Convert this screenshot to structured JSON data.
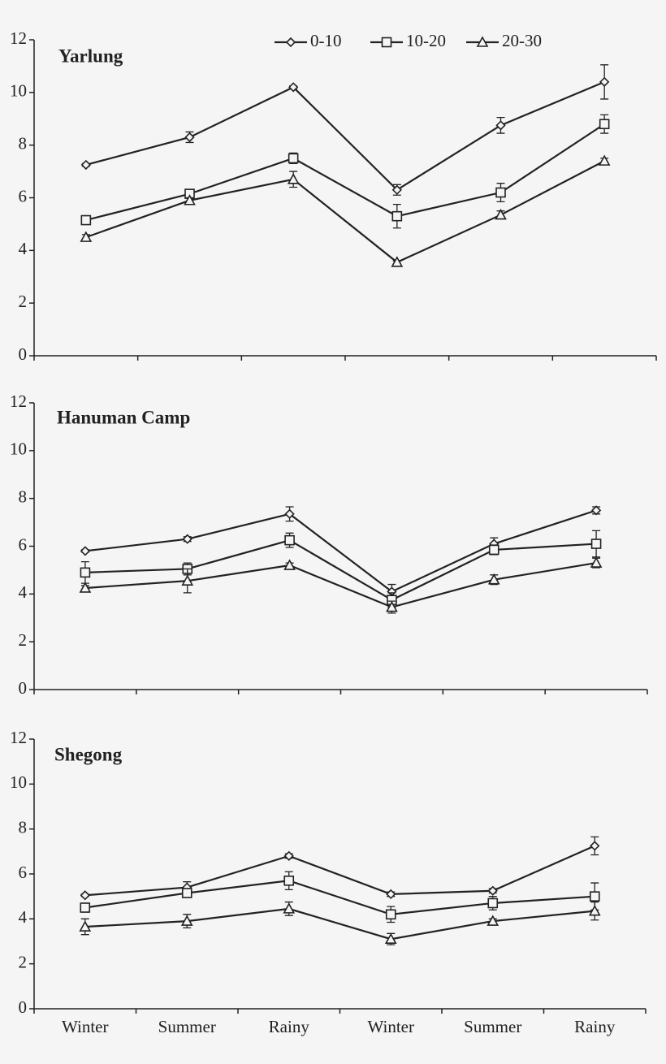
{
  "chart_data": [
    {
      "type": "line",
      "title": "Yarlung",
      "ylim": [
        0,
        12
      ],
      "yticks": [
        0,
        2,
        4,
        6,
        8,
        10,
        12
      ],
      "legend": "top-right",
      "series": [
        {
          "name": "0-10",
          "color": "#222222",
          "marker": "diamond",
          "values": [
            7.25,
            8.3,
            10.2,
            6.3,
            8.75,
            10.4
          ],
          "errors": [
            0.05,
            0.2,
            0.05,
            0.2,
            0.3,
            0.65
          ]
        },
        {
          "name": "10-20",
          "color": "#222222",
          "marker": "square",
          "values": [
            5.15,
            6.15,
            7.5,
            5.3,
            6.2,
            8.8
          ],
          "errors": [
            0.1,
            0.15,
            0.2,
            0.45,
            0.35,
            0.35
          ]
        },
        {
          "name": "20-30",
          "color": "#222222",
          "marker": "triangle",
          "values": [
            4.5,
            5.9,
            6.7,
            3.55,
            5.35,
            7.4
          ],
          "errors": [
            0.1,
            0.1,
            0.3,
            0.05,
            0.15,
            0.1
          ]
        }
      ]
    },
    {
      "type": "line",
      "title": "Hanuman Camp",
      "ylim": [
        0,
        12
      ],
      "yticks": [
        0,
        2,
        4,
        6,
        8,
        10,
        12
      ],
      "series": [
        {
          "color": "#222222",
          "marker": "diamond",
          "values": [
            5.8,
            6.3,
            7.35,
            4.1,
            6.1,
            7.5
          ],
          "errors": [
            0.05,
            0.1,
            0.3,
            0.3,
            0.25,
            0.15
          ]
        },
        {
          "color": "#222222",
          "marker": "square",
          "values": [
            4.9,
            5.05,
            6.25,
            3.75,
            5.85,
            6.1
          ],
          "errors": [
            0.45,
            0.25,
            0.3,
            0.3,
            0.2,
            0.55
          ]
        },
        {
          "color": "#222222",
          "marker": "triangle",
          "values": [
            4.25,
            4.55,
            5.2,
            3.45,
            4.6,
            5.3
          ],
          "errors": [
            0.1,
            0.5,
            0.1,
            0.25,
            0.2,
            0.2
          ]
        }
      ]
    },
    {
      "type": "line",
      "title": "Shegong",
      "ylim": [
        0,
        12
      ],
      "yticks": [
        0,
        2,
        4,
        6,
        8,
        10,
        12
      ],
      "categories": [
        "Winter",
        "Summer",
        "Rainy",
        "Winter",
        "Summer",
        "Rainy"
      ],
      "series": [
        {
          "color": "#222222",
          "marker": "diamond",
          "values": [
            5.05,
            5.4,
            6.8,
            5.1,
            5.25,
            7.25
          ],
          "errors": [
            0.05,
            0.25,
            0.1,
            0.1,
            0.1,
            0.4
          ]
        },
        {
          "color": "#222222",
          "marker": "square",
          "values": [
            4.5,
            5.15,
            5.7,
            4.2,
            4.7,
            5.0
          ],
          "errors": [
            0.2,
            0.15,
            0.4,
            0.35,
            0.3,
            0.6
          ]
        },
        {
          "color": "#222222",
          "marker": "triangle",
          "values": [
            3.65,
            3.9,
            4.45,
            3.1,
            3.9,
            4.35
          ],
          "errors": [
            0.35,
            0.3,
            0.3,
            0.25,
            0.1,
            0.4
          ]
        }
      ]
    }
  ]
}
